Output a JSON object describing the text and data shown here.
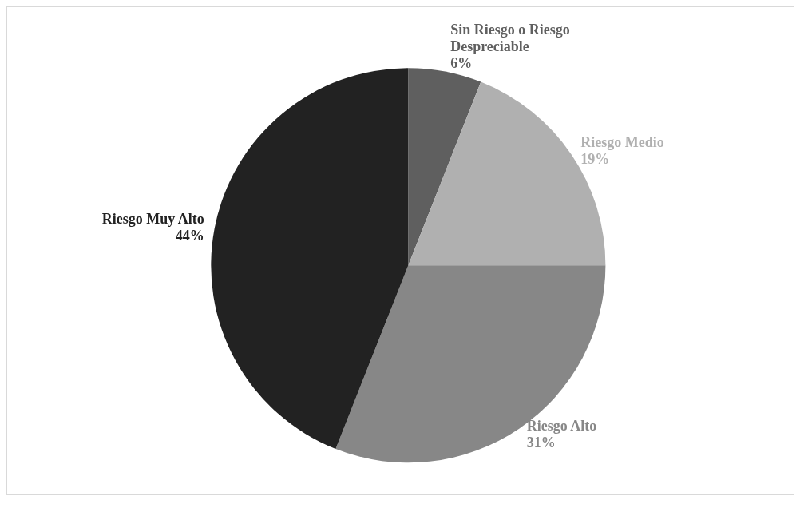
{
  "chart_data": {
    "type": "pie",
    "categories": [
      "Sin Riesgo o Riesgo Despreciable",
      "Riesgo Medio",
      "Riesgo Alto",
      "Riesgo Muy Alto"
    ],
    "values": [
      6,
      19,
      31,
      44
    ],
    "colors": [
      "#5f5f5f",
      "#b0b0b0",
      "#878787",
      "#222222"
    ],
    "value_labels": [
      "6%",
      "19%",
      "31%",
      "44%"
    ],
    "legend": false
  }
}
